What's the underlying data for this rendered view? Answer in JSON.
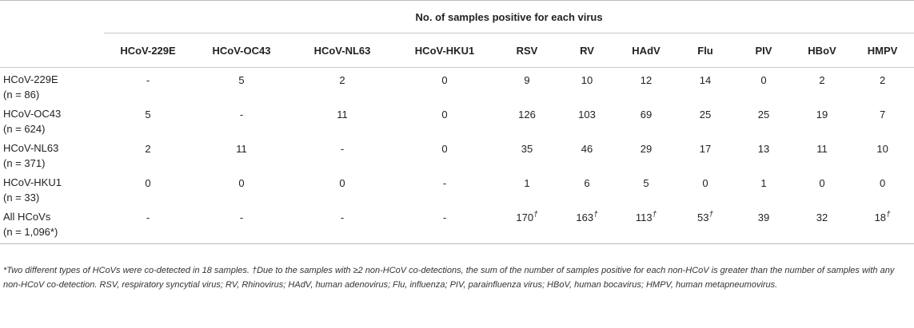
{
  "header": {
    "super_title": "No. of samples positive for each virus",
    "columns": [
      "HCoV-229E",
      "HCoV-OC43",
      "HCoV-NL63",
      "HCoV-HKU1",
      "RSV",
      "RV",
      "HAdV",
      "Flu",
      "PIV",
      "HBoV",
      "HMPV"
    ]
  },
  "rows": [
    {
      "label": "HCoV-229E",
      "n_text": "(n = 86)",
      "values": [
        "-",
        "5",
        "2",
        "0",
        "9",
        "10",
        "12",
        "14",
        "0",
        "2",
        "2"
      ],
      "marks": [
        "",
        "",
        "",
        "",
        "",
        "",
        "",
        "",
        "",
        "",
        ""
      ]
    },
    {
      "label": "HCoV-OC43",
      "n_text": "(n = 624)",
      "values": [
        "5",
        "-",
        "11",
        "0",
        "126",
        "103",
        "69",
        "25",
        "25",
        "19",
        "7"
      ],
      "marks": [
        "",
        "",
        "",
        "",
        "",
        "",
        "",
        "",
        "",
        "",
        ""
      ]
    },
    {
      "label": "HCoV-NL63",
      "n_text": "(n = 371)",
      "values": [
        "2",
        "11",
        "-",
        "0",
        "35",
        "46",
        "29",
        "17",
        "13",
        "11",
        "10"
      ],
      "marks": [
        "",
        "",
        "",
        "",
        "",
        "",
        "",
        "",
        "",
        "",
        ""
      ]
    },
    {
      "label": "HCoV-HKU1",
      "n_text": "(n = 33)",
      "values": [
        "0",
        "0",
        "0",
        "-",
        "1",
        "6",
        "5",
        "0",
        "1",
        "0",
        "0"
      ],
      "marks": [
        "",
        "",
        "",
        "",
        "",
        "",
        "",
        "",
        "",
        "",
        ""
      ]
    },
    {
      "label": "All HCoVs",
      "n_text": "(n = 1,096*)",
      "values": [
        "-",
        "-",
        "-",
        "-",
        "170",
        "163",
        "113",
        "53",
        "39",
        "32",
        "18"
      ],
      "marks": [
        "",
        "",
        "",
        "",
        "†",
        "†",
        "†",
        "†",
        "",
        "",
        "†"
      ]
    }
  ],
  "footnote": "*Two different types of HCoVs were co-detected in 18 samples. †Due to the samples with ≥2 non-HCoV co-detections, the sum of the number of samples positive for each non-HCoV is greater than the number of samples with any non-HCoV co-detection. RSV, respiratory syncytial virus; RV, Rhinovirus; HAdV, human adenovirus; Flu, influenza; PIV, parainfluenza virus; HBoV, human bocavirus; HMPV, human metapneumovirus."
}
